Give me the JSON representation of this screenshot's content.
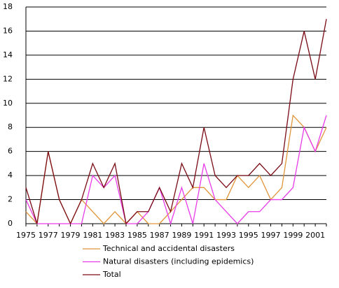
{
  "chart_data": {
    "type": "line",
    "categories": [
      "1975",
      null,
      "1977",
      null,
      "1979",
      null,
      "1981",
      null,
      "1983",
      null,
      "1985",
      null,
      "1987",
      null,
      "1989",
      null,
      "1991",
      null,
      "1993",
      null,
      "1995",
      null,
      "1997",
      null,
      "1999",
      null,
      "2001",
      null
    ],
    "series": [
      {
        "name": "Technical and accidental disasters",
        "color": "#e0953a",
        "values": [
          1,
          0,
          6,
          2,
          0,
          2,
          1,
          0,
          1,
          0,
          1,
          0,
          0,
          1,
          2,
          3,
          3,
          2,
          2,
          4,
          3,
          4,
          2,
          3,
          9,
          8,
          6,
          8
        ]
      },
      {
        "name": "Natural disasters (including epidemics)",
        "color": "#e83ce8",
        "values": [
          2,
          0,
          0,
          0,
          0,
          0,
          4,
          3,
          4,
          0,
          0,
          1,
          3,
          0,
          3,
          0,
          5,
          2,
          1,
          0,
          1,
          1,
          2,
          2,
          3,
          8,
          6,
          9
        ]
      },
      {
        "name": "Total",
        "color": "#7a0a14",
        "values": [
          3,
          0,
          6,
          2,
          0,
          2,
          5,
          3,
          5,
          0,
          1,
          1,
          3,
          1,
          5,
          3,
          8,
          4,
          3,
          4,
          4,
          5,
          4,
          5,
          12,
          16,
          12,
          17
        ]
      }
    ],
    "ylim": [
      0,
      18
    ],
    "yticks": [
      0,
      2,
      4,
      6,
      8,
      10,
      12,
      14,
      16,
      18
    ],
    "grid": true
  }
}
